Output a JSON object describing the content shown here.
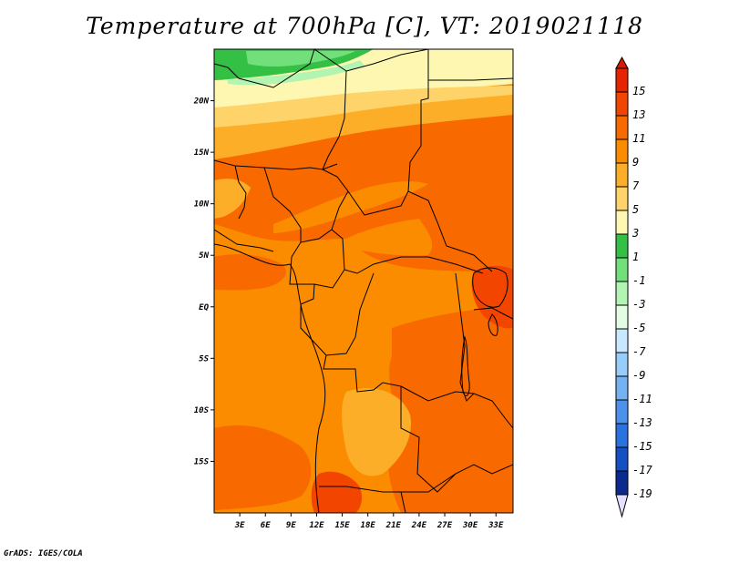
{
  "title": "Temperature at 700hPa [C], VT: 2019021118",
  "credit": "GrADS: IGES/COLA",
  "map": {
    "variable": "Temperature",
    "level": "700hPa",
    "units": "C",
    "valid_time": "2019021118",
    "lat_range": [
      -20,
      25
    ],
    "lon_range": [
      0,
      35
    ],
    "lat_ticks": [
      {
        "value": 20,
        "label": "20N"
      },
      {
        "value": 15,
        "label": "15N"
      },
      {
        "value": 10,
        "label": "10N"
      },
      {
        "value": 5,
        "label": "5N"
      },
      {
        "value": 0,
        "label": "EQ"
      },
      {
        "value": -5,
        "label": "5S"
      },
      {
        "value": -10,
        "label": "10S"
      },
      {
        "value": -15,
        "label": "15S"
      }
    ],
    "lon_ticks": [
      {
        "value": 3,
        "label": "3E"
      },
      {
        "value": 6,
        "label": "6E"
      },
      {
        "value": 9,
        "label": "9E"
      },
      {
        "value": 12,
        "label": "12E"
      },
      {
        "value": 15,
        "label": "15E"
      },
      {
        "value": 18,
        "label": "18E"
      },
      {
        "value": 21,
        "label": "21E"
      },
      {
        "value": 24,
        "label": "24E"
      },
      {
        "value": 27,
        "label": "27E"
      },
      {
        "value": 30,
        "label": "30E"
      },
      {
        "value": 33,
        "label": "33E"
      }
    ]
  },
  "colorbar": {
    "levels": [
      {
        "label": "15",
        "color": "#e82400"
      },
      {
        "label": "13",
        "color": "#f24600"
      },
      {
        "label": "11",
        "color": "#f86a00"
      },
      {
        "label": "9",
        "color": "#fb8c00"
      },
      {
        "label": "7",
        "color": "#fdae28"
      },
      {
        "label": "5",
        "color": "#fed36a"
      },
      {
        "label": "3",
        "color": "#fef7b2"
      },
      {
        "label": "1",
        "color": "#34c044"
      },
      {
        "label": "-1",
        "color": "#72e07a"
      },
      {
        "label": "-3",
        "color": "#b2f4b2"
      },
      {
        "label": "-5",
        "color": "#e4fbe4"
      },
      {
        "label": "-7",
        "color": "#c8e8ff"
      },
      {
        "label": "-9",
        "color": "#98ccfa"
      },
      {
        "label": "-11",
        "color": "#74b2f2"
      },
      {
        "label": "-13",
        "color": "#4c92ea"
      },
      {
        "label": "-15",
        "color": "#2a72e0"
      },
      {
        "label": "-17",
        "color": "#1450c4"
      },
      {
        "label": "-19",
        "color": "#0a2a90"
      }
    ],
    "over_color": "#d61a00",
    "under_color": "#e4e0ff",
    "bottom_fill_color": "#0a1060"
  }
}
